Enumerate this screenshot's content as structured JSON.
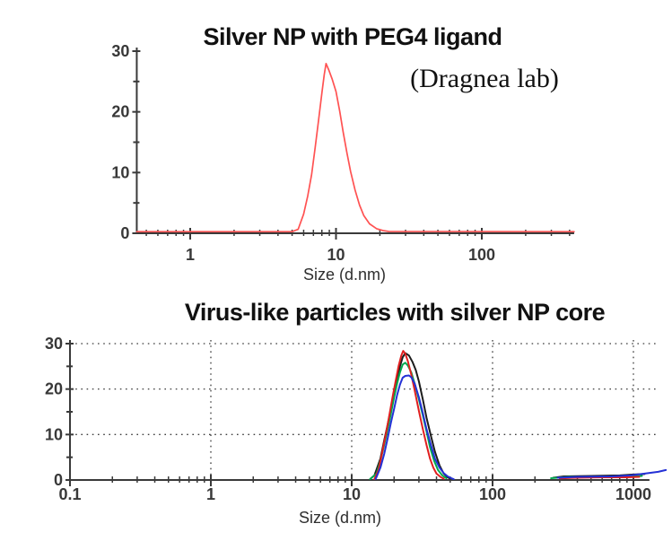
{
  "chart_data": [
    {
      "type": "line",
      "title": "Silver NP with PEG4 ligand",
      "annotation": "(Dragnea lab)",
      "xlabel": "Size (d.nm)",
      "ylabel": "",
      "x_scale": "log",
      "x_range": [
        0.43,
        430
      ],
      "ylim": [
        0,
        30
      ],
      "x_ticks": [
        1,
        10,
        100
      ],
      "y_ticks": [
        0,
        10,
        20,
        30
      ],
      "y_minor_ticks": [
        5,
        15,
        25
      ],
      "grid": false,
      "legend": "none",
      "series": [
        {
          "name": "silver-np-peg4-intensity",
          "color": "#ff5252",
          "peak": {
            "x": 8.5,
            "y": 27.8
          },
          "segments": [
            [
              [
                0.43,
                0.12
              ],
              [
                5.0,
                0.12
              ],
              [
                5.5,
                0.5
              ],
              [
                6.0,
                3
              ],
              [
                6.4,
                6
              ],
              [
                6.8,
                9.5
              ],
              [
                7.2,
                14
              ],
              [
                7.6,
                18.5
              ],
              [
                8.0,
                23
              ],
              [
                8.3,
                26
              ],
              [
                8.55,
                27.8
              ],
              [
                8.9,
                26.8
              ],
              [
                9.4,
                25.3
              ],
              [
                10,
                23.2
              ],
              [
                10.6,
                20
              ],
              [
                11.2,
                16.5
              ],
              [
                11.9,
                13
              ],
              [
                12.6,
                10
              ],
              [
                13.5,
                7
              ],
              [
                14.5,
                4.5
              ],
              [
                15.5,
                2.8
              ],
              [
                17,
                1.4
              ],
              [
                19,
                0.6
              ],
              [
                21,
                0.3
              ],
              [
                23,
                0.15
              ],
              [
                430,
                0.12
              ]
            ]
          ]
        }
      ]
    },
    {
      "type": "line",
      "title": "Virus-like particles with silver NP core",
      "annotation": "",
      "xlabel": "Size (d.nm)",
      "ylabel": "",
      "x_scale": "log",
      "x_range": [
        0.1,
        1300
      ],
      "ylim": [
        0,
        30
      ],
      "x_ticks": [
        0.1,
        1,
        10,
        100,
        1000
      ],
      "y_ticks": [
        0,
        10,
        20,
        30
      ],
      "y_minor_ticks": [
        5,
        15,
        25
      ],
      "grid": true,
      "x_gridlines": [
        1,
        10,
        100,
        1000
      ],
      "y_gridlines": [
        10,
        20,
        30
      ],
      "legend": "none",
      "series": [
        {
          "name": "trace-black",
          "color": "#1c1c1c",
          "peak": {
            "x": 24,
            "y": 27.7
          },
          "segments": [
            [
              [
                13.5,
                0
              ],
              [
                14.5,
                0.8
              ],
              [
                16,
                4.5
              ],
              [
                17,
                8.5
              ],
              [
                18,
                12
              ],
              [
                19,
                15.5
              ],
              [
                20,
                19
              ],
              [
                21,
                22
              ],
              [
                22,
                24.8
              ],
              [
                23,
                26.8
              ],
              [
                24,
                27.7
              ],
              [
                25.5,
                27.2
              ],
              [
                27,
                25.8
              ],
              [
                28.5,
                24
              ],
              [
                30,
                21.5
              ],
              [
                32,
                17.5
              ],
              [
                34,
                13.5
              ],
              [
                36.5,
                9.5
              ],
              [
                39,
                6
              ],
              [
                42,
                3
              ],
              [
                45,
                1.2
              ],
              [
                48,
                0.4
              ],
              [
                50,
                0.1
              ]
            ],
            [
              [
                270,
                0.3
              ],
              [
                320,
                0.6
              ],
              [
                500,
                0.7
              ],
              [
                800,
                0.8
              ],
              [
                1000,
                1.0
              ],
              [
                1200,
                1.1
              ]
            ]
          ]
        },
        {
          "name": "trace-green",
          "color": "#00a94f",
          "peak": {
            "x": 24,
            "y": 25.6
          },
          "segments": [
            [
              [
                13.5,
                0
              ],
              [
                15,
                1.2
              ],
              [
                16,
                4
              ],
              [
                17,
                7.5
              ],
              [
                18,
                11
              ],
              [
                19,
                14.5
              ],
              [
                20,
                18
              ],
              [
                21,
                21
              ],
              [
                22,
                23.5
              ],
              [
                23,
                25.2
              ],
              [
                24,
                25.6
              ],
              [
                25,
                25
              ],
              [
                26.5,
                23.5
              ],
              [
                28,
                21
              ],
              [
                30,
                17.5
              ],
              [
                32,
                14
              ],
              [
                34,
                10.5
              ],
              [
                36,
                7
              ],
              [
                38.5,
                4
              ],
              [
                41,
                2
              ],
              [
                44,
                0.8
              ],
              [
                47,
                0.2
              ]
            ],
            [
              [
                260,
                0.2
              ],
              [
                350,
                0.5
              ],
              [
                600,
                0.5
              ],
              [
                900,
                0.5
              ],
              [
                1150,
                0.7
              ]
            ]
          ]
        },
        {
          "name": "trace-red",
          "color": "#e01f1f",
          "peak": {
            "x": 23.2,
            "y": 28.2
          },
          "segments": [
            [
              [
                14.5,
                0
              ],
              [
                15.5,
                2
              ],
              [
                16.5,
                6
              ],
              [
                17.5,
                10
              ],
              [
                18.5,
                14
              ],
              [
                19.5,
                18
              ],
              [
                20.5,
                21.5
              ],
              [
                21.5,
                24.8
              ],
              [
                22.5,
                27.2
              ],
              [
                23.2,
                28.2
              ],
              [
                24,
                27.6
              ],
              [
                25,
                26
              ],
              [
                26.5,
                23
              ],
              [
                28,
                19.5
              ],
              [
                30,
                15
              ],
              [
                32,
                11
              ],
              [
                34,
                7.5
              ],
              [
                36,
                4.5
              ],
              [
                38,
                2.5
              ],
              [
                40,
                1.2
              ],
              [
                43,
                0.4
              ],
              [
                45,
                0.1
              ]
            ],
            [
              [
                300,
                0.15
              ],
              [
                400,
                0.3
              ],
              [
                600,
                0.4
              ],
              [
                900,
                0.4
              ],
              [
                1100,
                0.5
              ]
            ]
          ]
        },
        {
          "name": "trace-blue",
          "color": "#2431d6",
          "peak": {
            "x": 25,
            "y": 22.8
          },
          "segments": [
            [
              [
                14.8,
                0
              ],
              [
                16,
                2.5
              ],
              [
                17,
                5.5
              ],
              [
                18,
                9
              ],
              [
                19,
                12.5
              ],
              [
                20,
                15.5
              ],
              [
                21,
                18.5
              ],
              [
                22,
                20.8
              ],
              [
                23,
                22.3
              ],
              [
                24,
                22.7
              ],
              [
                25.5,
                22.8
              ],
              [
                26.5,
                22.4
              ],
              [
                28,
                21
              ],
              [
                30,
                18
              ],
              [
                32,
                14.5
              ],
              [
                34,
                11
              ],
              [
                36.5,
                7.5
              ],
              [
                39,
                4.5
              ],
              [
                42,
                2.5
              ],
              [
                45,
                1.3
              ],
              [
                48,
                0.6
              ],
              [
                51,
                0.2
              ],
              [
                53,
                0
              ]
            ],
            [
              [
                290,
                0.3
              ],
              [
                400,
                0.5
              ],
              [
                700,
                0.6
              ],
              [
                950,
                0.8
              ],
              [
                1200,
                1.2
              ],
              [
                1500,
                1.6
              ],
              [
                1700,
                2.0
              ]
            ]
          ]
        }
      ]
    }
  ]
}
